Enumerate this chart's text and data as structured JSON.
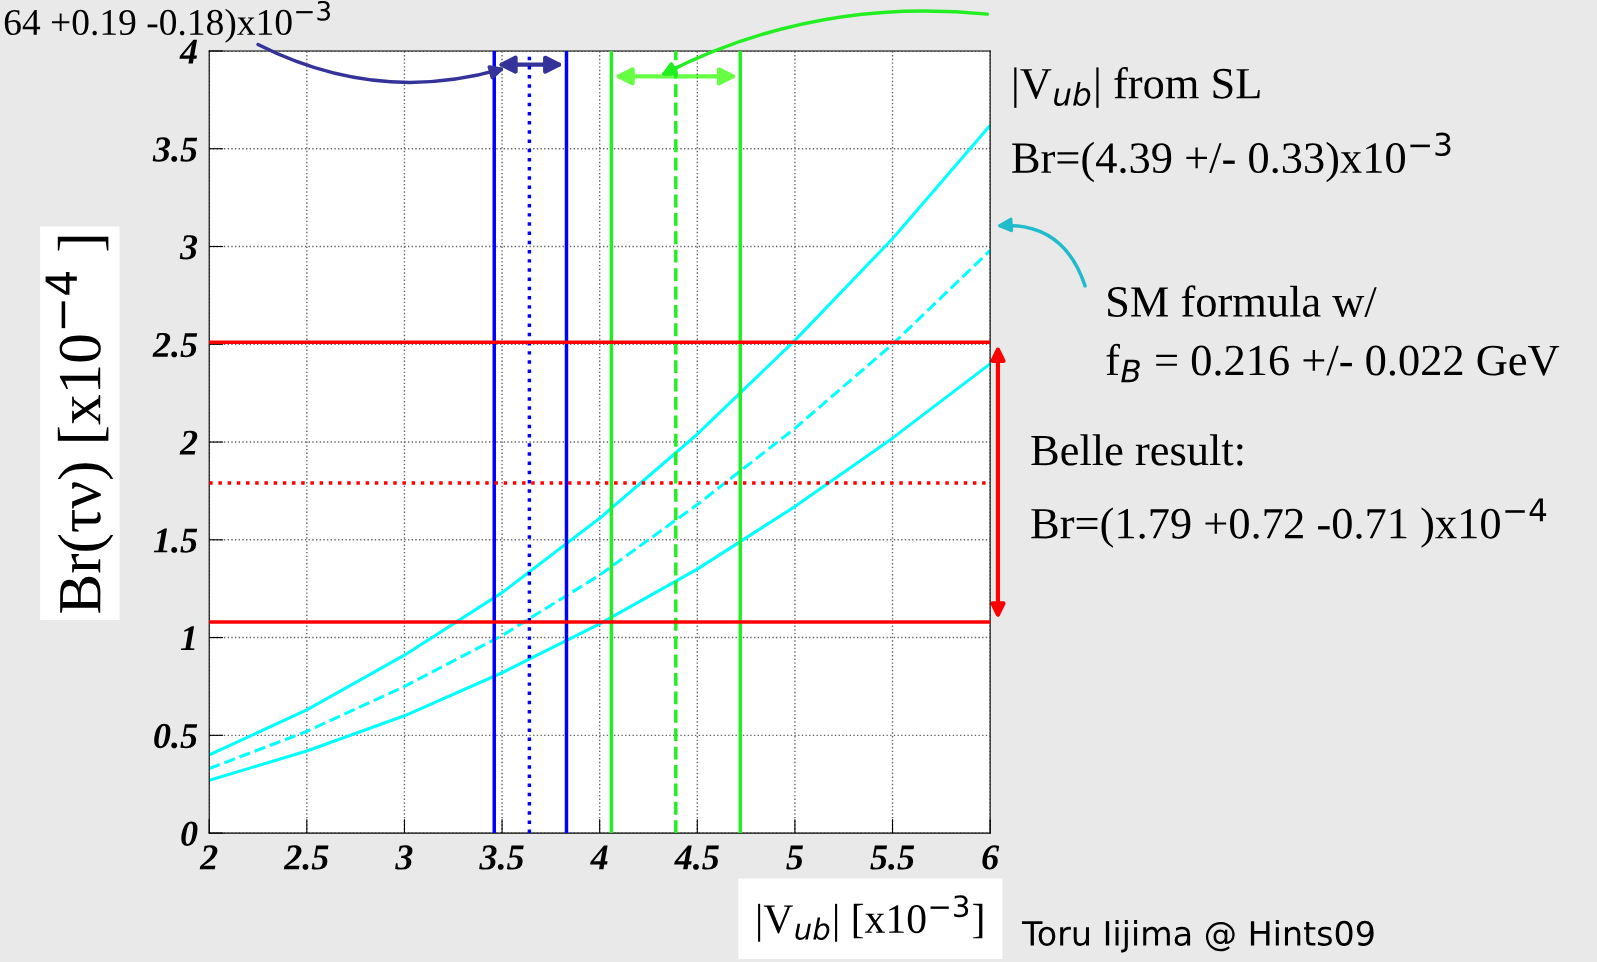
{
  "chart_data": {
    "type": "line",
    "xlabel": "|V$_{ub}$| [x10$^{−3}$]",
    "ylabel": "Br(τν) [x10$^{−4}$ ]",
    "x": [
      2,
      2.5,
      3,
      3.5,
      4,
      4.5,
      5,
      5.5,
      6
    ],
    "series": [
      {
        "color": "#00ffff",
        "line_style": "solid",
        "values": [
          0.4,
          0.63,
          0.91,
          1.23,
          1.61,
          2.04,
          2.52,
          3.04,
          3.62
        ]
      },
      {
        "color": "#00ffff",
        "line_style": "dashed",
        "values": [
          0.33,
          0.52,
          0.75,
          1.01,
          1.32,
          1.68,
          2.07,
          2.5,
          2.98
        ]
      },
      {
        "color": "#00ffff",
        "line_style": "solid",
        "values": [
          0.27,
          0.42,
          0.6,
          0.82,
          1.07,
          1.35,
          1.67,
          2.02,
          2.4
        ]
      }
    ],
    "ref_lines": [
      {
        "axis": "x",
        "value": 3.46,
        "color": "#0000ff",
        "line_style": "solid"
      },
      {
        "axis": "x",
        "value": 3.64,
        "color": "#0000ff",
        "line_style": "dotted"
      },
      {
        "axis": "x",
        "value": 3.83,
        "color": "#0000ff",
        "line_style": "solid"
      },
      {
        "axis": "x",
        "value": 4.06,
        "color": "#22ee22",
        "line_style": "solid"
      },
      {
        "axis": "x",
        "value": 4.39,
        "color": "#22ee22",
        "line_style": "dashed"
      },
      {
        "axis": "x",
        "value": 4.72,
        "color": "#22ee22",
        "line_style": "solid"
      },
      {
        "axis": "y",
        "value": 2.51,
        "color": "#ff0000",
        "line_style": "solid"
      },
      {
        "axis": "y",
        "value": 1.79,
        "color": "#ff0000",
        "line_style": "dotted"
      },
      {
        "axis": "y",
        "value": 1.08,
        "color": "#ff0000",
        "line_style": "solid"
      }
    ],
    "annotations": [
      "64 +0.19 -0.18)x10$^{−3}$",
      "|V$_{ub}$| from SL\nBr=(4.39 +/- 0.33)x10$^{−3}$",
      "SM formula w/\nf$_{B}$ = 0.216 +/- 0.022 GeV",
      "Belle result:\nBr=(1.79 +0.72 -0.71 )x10$^{−4}$",
      "Toru Iijima @ Hints09"
    ],
    "xlim": [
      2,
      6
    ],
    "ylim": [
      0,
      4
    ],
    "xticks": [
      2,
      2.5,
      3,
      3.5,
      4,
      4.5,
      5,
      5.5,
      6
    ],
    "yticks": [
      0,
      0.5,
      1,
      1.5,
      2,
      2.5,
      3,
      3.5,
      4
    ],
    "grid": true,
    "marker": "none",
    "legend": false
  }
}
